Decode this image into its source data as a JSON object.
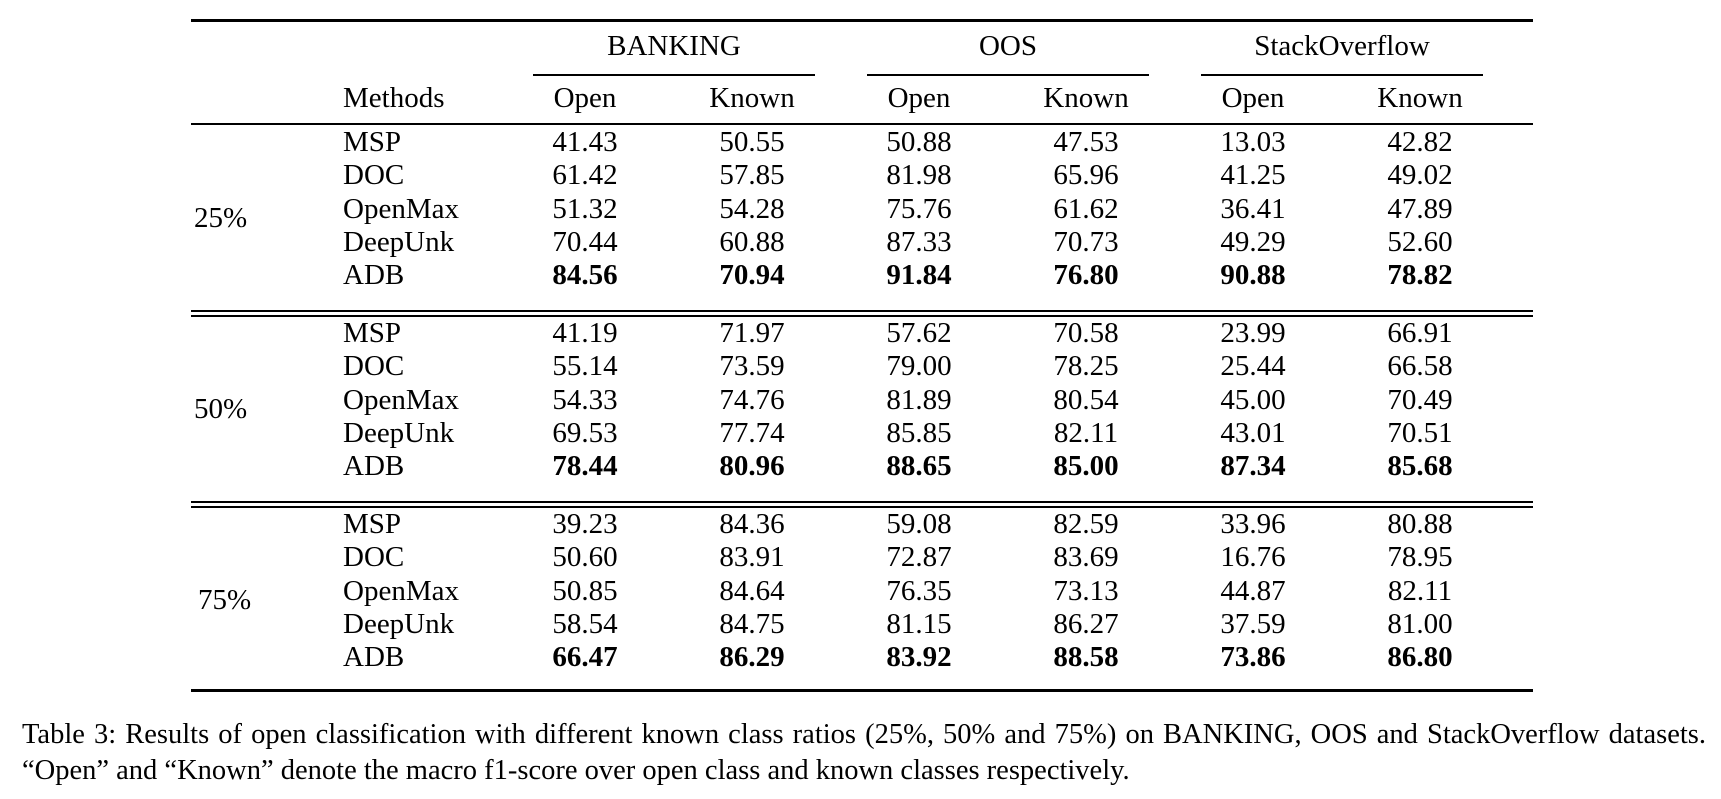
{
  "table": {
    "header": {
      "methods": "Methods",
      "datasets": [
        "BANKING",
        "OOS",
        "StackOverflow"
      ],
      "sub": [
        "Open",
        "Known"
      ]
    },
    "groups": [
      {
        "ratio": "25%",
        "rows": [
          {
            "method": "MSP",
            "values": [
              "41.43",
              "50.55",
              "50.88",
              "47.53",
              "13.03",
              "42.82"
            ],
            "bold": false
          },
          {
            "method": "DOC",
            "values": [
              "61.42",
              "57.85",
              "81.98",
              "65.96",
              "41.25",
              "49.02"
            ],
            "bold": false
          },
          {
            "method": "OpenMax",
            "values": [
              "51.32",
              "54.28",
              "75.76",
              "61.62",
              "36.41",
              "47.89"
            ],
            "bold": false
          },
          {
            "method": "DeepUnk",
            "values": [
              "70.44",
              "60.88",
              "87.33",
              "70.73",
              "49.29",
              "52.60"
            ],
            "bold": false
          },
          {
            "method": "ADB",
            "values": [
              "84.56",
              "70.94",
              "91.84",
              "76.80",
              "90.88",
              "78.82"
            ],
            "bold": true
          }
        ]
      },
      {
        "ratio": "50%",
        "rows": [
          {
            "method": "MSP",
            "values": [
              "41.19",
              "71.97",
              "57.62",
              "70.58",
              "23.99",
              "66.91"
            ],
            "bold": false
          },
          {
            "method": "DOC",
            "values": [
              "55.14",
              "73.59",
              "79.00",
              "78.25",
              "25.44",
              "66.58"
            ],
            "bold": false
          },
          {
            "method": "OpenMax",
            "values": [
              "54.33",
              "74.76",
              "81.89",
              "80.54",
              "45.00",
              "70.49"
            ],
            "bold": false
          },
          {
            "method": "DeepUnk",
            "values": [
              "69.53",
              "77.74",
              "85.85",
              "82.11",
              "43.01",
              "70.51"
            ],
            "bold": false
          },
          {
            "method": "ADB",
            "values": [
              "78.44",
              "80.96",
              "88.65",
              "85.00",
              "87.34",
              "85.68"
            ],
            "bold": true
          }
        ]
      },
      {
        "ratio": "75%",
        "rows": [
          {
            "method": "MSP",
            "values": [
              "39.23",
              "84.36",
              "59.08",
              "82.59",
              "33.96",
              "80.88"
            ],
            "bold": false
          },
          {
            "method": "DOC",
            "values": [
              "50.60",
              "83.91",
              "72.87",
              "83.69",
              "16.76",
              "78.95"
            ],
            "bold": false
          },
          {
            "method": "OpenMax",
            "values": [
              "50.85",
              "84.64",
              "76.35",
              "73.13",
              "44.87",
              "82.11"
            ],
            "bold": false
          },
          {
            "method": "DeepUnk",
            "values": [
              "58.54",
              "84.75",
              "81.15",
              "86.27",
              "37.59",
              "81.00"
            ],
            "bold": false
          },
          {
            "method": "ADB",
            "values": [
              "66.47",
              "86.29",
              "83.92",
              "88.58",
              "73.86",
              "86.80"
            ],
            "bold": true
          }
        ]
      }
    ]
  },
  "caption": "Table 3:  Results of open classification with different known class ratios (25%, 50% and 75%) on BANKING, OOS and StackOverflow datasets. “Open” and “Known” denote the macro f1-score over open class and known classes respectively."
}
